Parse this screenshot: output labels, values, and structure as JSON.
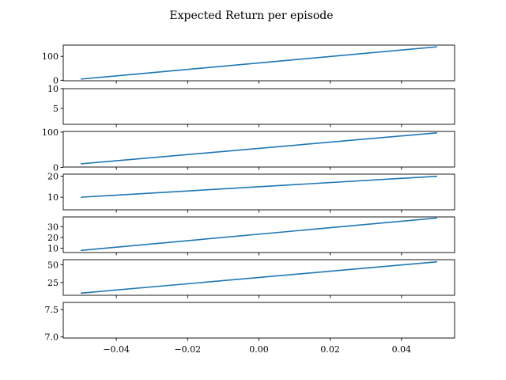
{
  "title": "Expected Return per episode",
  "x_tick_labels": [
    "−0.04",
    "−0.02",
    "0.00",
    "0.02",
    "0.04"
  ],
  "colors": {
    "line": "#1f77b4",
    "axes": "#000000",
    "background": "#ffffff"
  },
  "chart_data": [
    {
      "type": "line",
      "x": [
        -0.05,
        0.05
      ],
      "y": [
        5,
        140
      ],
      "ylim": [
        -2,
        147
      ],
      "yticks": [
        0,
        100
      ],
      "ytick_labels": [
        "0",
        "100"
      ],
      "title": "",
      "xlabel": "",
      "ylabel": ""
    },
    {
      "type": "line",
      "x": [],
      "y": [],
      "ylim": [
        1,
        10
      ],
      "yticks": [
        5,
        10
      ],
      "ytick_labels": [
        "5",
        "10"
      ],
      "title": "",
      "xlabel": "",
      "ylabel": ""
    },
    {
      "type": "line",
      "x": [
        -0.05,
        0.05
      ],
      "y": [
        10,
        98
      ],
      "ylim": [
        1,
        102
      ],
      "yticks": [
        0,
        100
      ],
      "ytick_labels": [
        "0",
        "100"
      ],
      "title": "",
      "xlabel": "",
      "ylabel": ""
    },
    {
      "type": "line",
      "x": [
        -0.05,
        0.05
      ],
      "y": [
        10,
        20
      ],
      "ylim": [
        4,
        21
      ],
      "yticks": [
        10,
        20
      ],
      "ytick_labels": [
        "10",
        "20"
      ],
      "title": "",
      "xlabel": "",
      "ylabel": ""
    },
    {
      "type": "line",
      "x": [
        -0.05,
        0.05
      ],
      "y": [
        8,
        38
      ],
      "ylim": [
        6,
        39
      ],
      "yticks": [
        10,
        20,
        30
      ],
      "ytick_labels": [
        "10",
        "20",
        "30"
      ],
      "title": "",
      "xlabel": "",
      "ylabel": ""
    },
    {
      "type": "line",
      "x": [
        -0.05,
        0.05
      ],
      "y": [
        10,
        54
      ],
      "ylim": [
        7,
        57
      ],
      "yticks": [
        25,
        50
      ],
      "ytick_labels": [
        "25",
        "50"
      ],
      "title": "",
      "xlabel": "",
      "ylabel": ""
    },
    {
      "type": "line",
      "x": [],
      "y": [],
      "ylim": [
        6.98,
        7.63
      ],
      "yticks": [
        7.0,
        7.5
      ],
      "ytick_labels": [
        "7.0",
        "7.5"
      ],
      "title": "",
      "xlabel": "",
      "ylabel": "",
      "x_tick_labels_visible": true
    }
  ]
}
